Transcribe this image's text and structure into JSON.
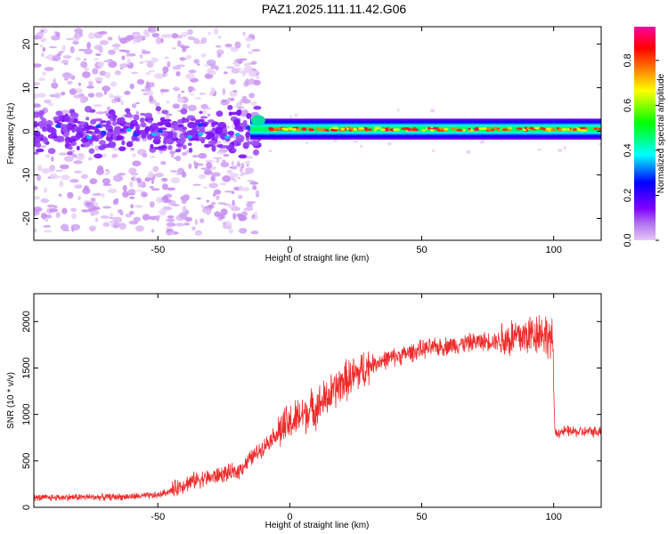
{
  "title": "PAZ1.2025.111.11.42.G06",
  "chart_data": [
    {
      "type": "heatmap",
      "xlabel": "Height of straight line (km)",
      "ylabel": "Frequency (Hz)",
      "xlim": [
        -97,
        118
      ],
      "ylim": [
        -25,
        24
      ],
      "x_ticks": [
        -50,
        0,
        50,
        100
      ],
      "y_ticks": [
        -20,
        -10,
        0,
        10,
        20
      ],
      "colorbar": {
        "label": "Normalized spectral amplitude",
        "range": [
          0,
          0.95
        ],
        "ticks": [
          0.0,
          0.2,
          0.4,
          0.6,
          0.8
        ],
        "colormap": [
          "#e6c8f5",
          "#8000ff",
          "#0000ff",
          "#00ffff",
          "#00ff00",
          "#ffff00",
          "#ff8000",
          "#ff0000",
          "#ff00a0"
        ]
      },
      "features": [
        {
          "x_range": [
            -97,
            -15
          ],
          "description_value": "scattered low-amplitude energy, concentrated near 0 Hz"
        },
        {
          "x_range": [
            -15,
            118
          ],
          "center_frequency_hz": 0.5,
          "typical_amplitude": 0.5
        }
      ]
    },
    {
      "type": "line",
      "xlabel": "Height of straight line (km)",
      "ylabel": "SNR (10 * v/v)",
      "xlim": [
        -97,
        118
      ],
      "ylim": [
        0,
        2300
      ],
      "x_ticks": [
        -50,
        0,
        50,
        100
      ],
      "y_ticks": [
        0,
        500,
        1000,
        1500,
        2000
      ],
      "color": "#ee2b2b",
      "series": [
        {
          "x": [
            -97,
            -90,
            -80,
            -70,
            -60,
            -50,
            -45,
            -40,
            -35,
            -30,
            -25,
            -20,
            -15,
            -10,
            -5,
            0,
            5,
            10,
            15,
            20,
            25,
            30,
            35,
            40,
            50,
            60,
            70,
            80,
            90,
            95,
            99.5,
            100.5,
            105,
            110,
            118
          ],
          "values": [
            100,
            105,
            110,
            110,
            115,
            130,
            180,
            250,
            300,
            320,
            360,
            380,
            520,
            650,
            800,
            900,
            1000,
            1080,
            1200,
            1350,
            1420,
            1530,
            1580,
            1620,
            1700,
            1740,
            1780,
            1800,
            1850,
            1900,
            1800,
            800,
            820,
            810,
            820
          ]
        }
      ]
    }
  ]
}
